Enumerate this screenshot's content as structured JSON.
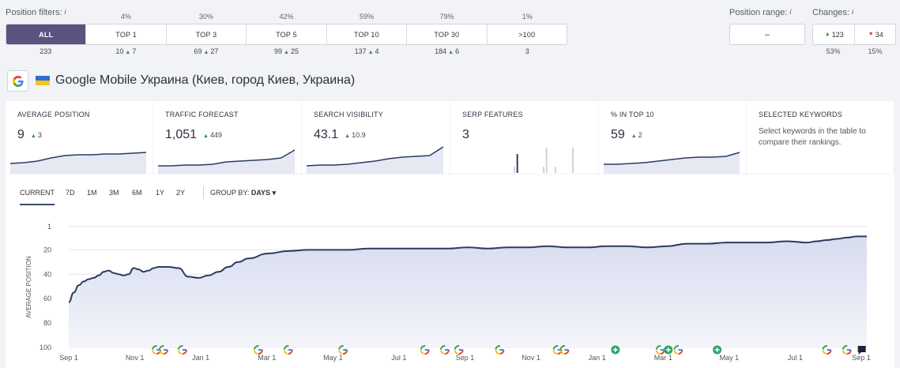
{
  "position_filters": {
    "title": "Position filters:",
    "info": "i",
    "items": [
      {
        "label": "ALL",
        "pct": "",
        "count": "233",
        "delta": "",
        "active": true
      },
      {
        "label": "TOP 1",
        "pct": "4%",
        "count": "10",
        "delta": "7",
        "active": false
      },
      {
        "label": "TOP 3",
        "pct": "30%",
        "count": "69",
        "delta": "27",
        "active": false
      },
      {
        "label": "TOP 5",
        "pct": "42%",
        "count": "99",
        "delta": "25",
        "active": false
      },
      {
        "label": "TOP 10",
        "pct": "59%",
        "count": "137",
        "delta": "4",
        "active": false
      },
      {
        "label": "TOP 30",
        "pct": "79%",
        "count": "184",
        "delta": "6",
        "active": false
      },
      {
        "label": ">100",
        "pct": "1%",
        "count": "3",
        "delta": "",
        "active": false
      }
    ]
  },
  "position_range": {
    "title": "Position range:",
    "info": "i",
    "value": "–"
  },
  "changes": {
    "title": "Changes:",
    "info": "i",
    "up_value": "123",
    "down_value": "34",
    "up_pct": "53%",
    "down_pct": "15%"
  },
  "engine": {
    "title": "Google Mobile Украина (Киев, город Киев, Украина)",
    "icon": "google-icon"
  },
  "metric_cards": [
    {
      "id": "avg",
      "title": "AVERAGE POSITION",
      "value": "9",
      "delta": "3",
      "trend": [
        9,
        10,
        12,
        16,
        19,
        20,
        20,
        21,
        21,
        22,
        23
      ]
    },
    {
      "id": "traffic",
      "title": "TRAFFIC FORECAST",
      "value": "1,051",
      "delta": "449",
      "trend": [
        6,
        6,
        7,
        7,
        8,
        11,
        12,
        13,
        14,
        16,
        26
      ]
    },
    {
      "id": "visibility",
      "title": "SEARCH VISIBILITY",
      "value": "43.1",
      "delta": "10.9",
      "trend": [
        6,
        7,
        7,
        8,
        10,
        12,
        15,
        17,
        18,
        19,
        30
      ]
    },
    {
      "id": "serp",
      "title": "SERP FEATURES",
      "value": "3",
      "delta": "",
      "bars": [
        1,
        3,
        0,
        0,
        0,
        0,
        0,
        0,
        0,
        0,
        1,
        4,
        0,
        0,
        1,
        0,
        0,
        0,
        0,
        0,
        4
      ]
    },
    {
      "id": "top10",
      "title": "% IN TOP 10",
      "value": "59",
      "delta": "2",
      "trend": [
        8,
        8,
        9,
        10,
        12,
        14,
        16,
        17,
        17,
        18,
        23
      ]
    },
    {
      "id": "selected",
      "title": "SELECTED KEYWORDS",
      "desc": "Select keywords in the table to compare their rankings."
    }
  ],
  "range_tabs": [
    "CURRENT",
    "7D",
    "1M",
    "3M",
    "6M",
    "1Y",
    "2Y"
  ],
  "active_range": "CURRENT",
  "group_by": {
    "label": "GROUP BY:",
    "value": "DAYS"
  },
  "colors": {
    "accent": "#5a5380",
    "line": "#2d3a63",
    "area": "#e8ebf6",
    "up": "#2e8b57",
    "down": "#d9343f"
  },
  "chart_data": {
    "type": "area",
    "title": "",
    "xlabel": "",
    "ylabel": "AVERAGE POSITION",
    "y_inverted": true,
    "ylim": [
      1,
      100
    ],
    "y_ticks": [
      1,
      20,
      40,
      60,
      80,
      100
    ],
    "x_tick_labels": [
      "Sep 1",
      "Nov 1",
      "Jan 1",
      "Mar 1",
      "May 1",
      "Jul 1",
      "Sep 1",
      "Nov 1",
      "Jan 1",
      "Mar 1",
      "May 1",
      "Jul 1",
      "Sep 1"
    ],
    "x": [
      0,
      5,
      10,
      15,
      20,
      25,
      30,
      35,
      40,
      45,
      50,
      55,
      60,
      65,
      70,
      75,
      80,
      85,
      90,
      95,
      100,
      110,
      120,
      130,
      140,
      150,
      160,
      170,
      180,
      200,
      220,
      240,
      260,
      280,
      300,
      320,
      340,
      360,
      380,
      400,
      420,
      440,
      460,
      480,
      500,
      520,
      540,
      560,
      580,
      600,
      620,
      640,
      660,
      680,
      700,
      720,
      740,
      750,
      760,
      770,
      780,
      790,
      800
    ],
    "values": [
      63,
      55,
      49,
      46,
      44,
      43,
      41,
      38,
      37,
      39,
      40,
      41,
      40,
      35,
      36,
      38,
      37,
      35,
      34,
      34,
      34,
      35,
      42,
      43,
      41,
      38,
      34,
      30,
      27,
      23,
      21,
      20,
      20,
      20,
      19,
      19,
      19,
      19,
      19,
      18,
      19,
      18,
      18,
      17,
      18,
      18,
      17,
      17,
      18,
      17,
      15,
      15,
      14,
      14,
      14,
      13,
      14,
      13,
      12,
      11,
      10,
      9,
      9
    ],
    "grid": true,
    "legend": "none",
    "event_markers": [
      {
        "x": 88,
        "icon": "google-icon"
      },
      {
        "x": 95,
        "icon": "google-icon"
      },
      {
        "x": 114,
        "icon": "google-icon"
      },
      {
        "x": 190,
        "icon": "google-icon"
      },
      {
        "x": 220,
        "icon": "google-icon"
      },
      {
        "x": 275,
        "icon": "google-icon"
      },
      {
        "x": 357,
        "icon": "google-icon"
      },
      {
        "x": 377,
        "icon": "google-icon"
      },
      {
        "x": 391,
        "icon": "google-icon"
      },
      {
        "x": 432,
        "icon": "google-icon"
      },
      {
        "x": 490,
        "icon": "google-icon"
      },
      {
        "x": 497,
        "icon": "google-icon"
      },
      {
        "x": 548,
        "icon": "plus-icon"
      },
      {
        "x": 593,
        "icon": "google-icon"
      },
      {
        "x": 601,
        "icon": "plus-icon"
      },
      {
        "x": 611,
        "icon": "google-icon"
      },
      {
        "x": 650,
        "icon": "plus-icon"
      },
      {
        "x": 760,
        "icon": "google-icon"
      },
      {
        "x": 780,
        "icon": "google-icon"
      },
      {
        "x": 795,
        "icon": "note-icon"
      }
    ]
  }
}
